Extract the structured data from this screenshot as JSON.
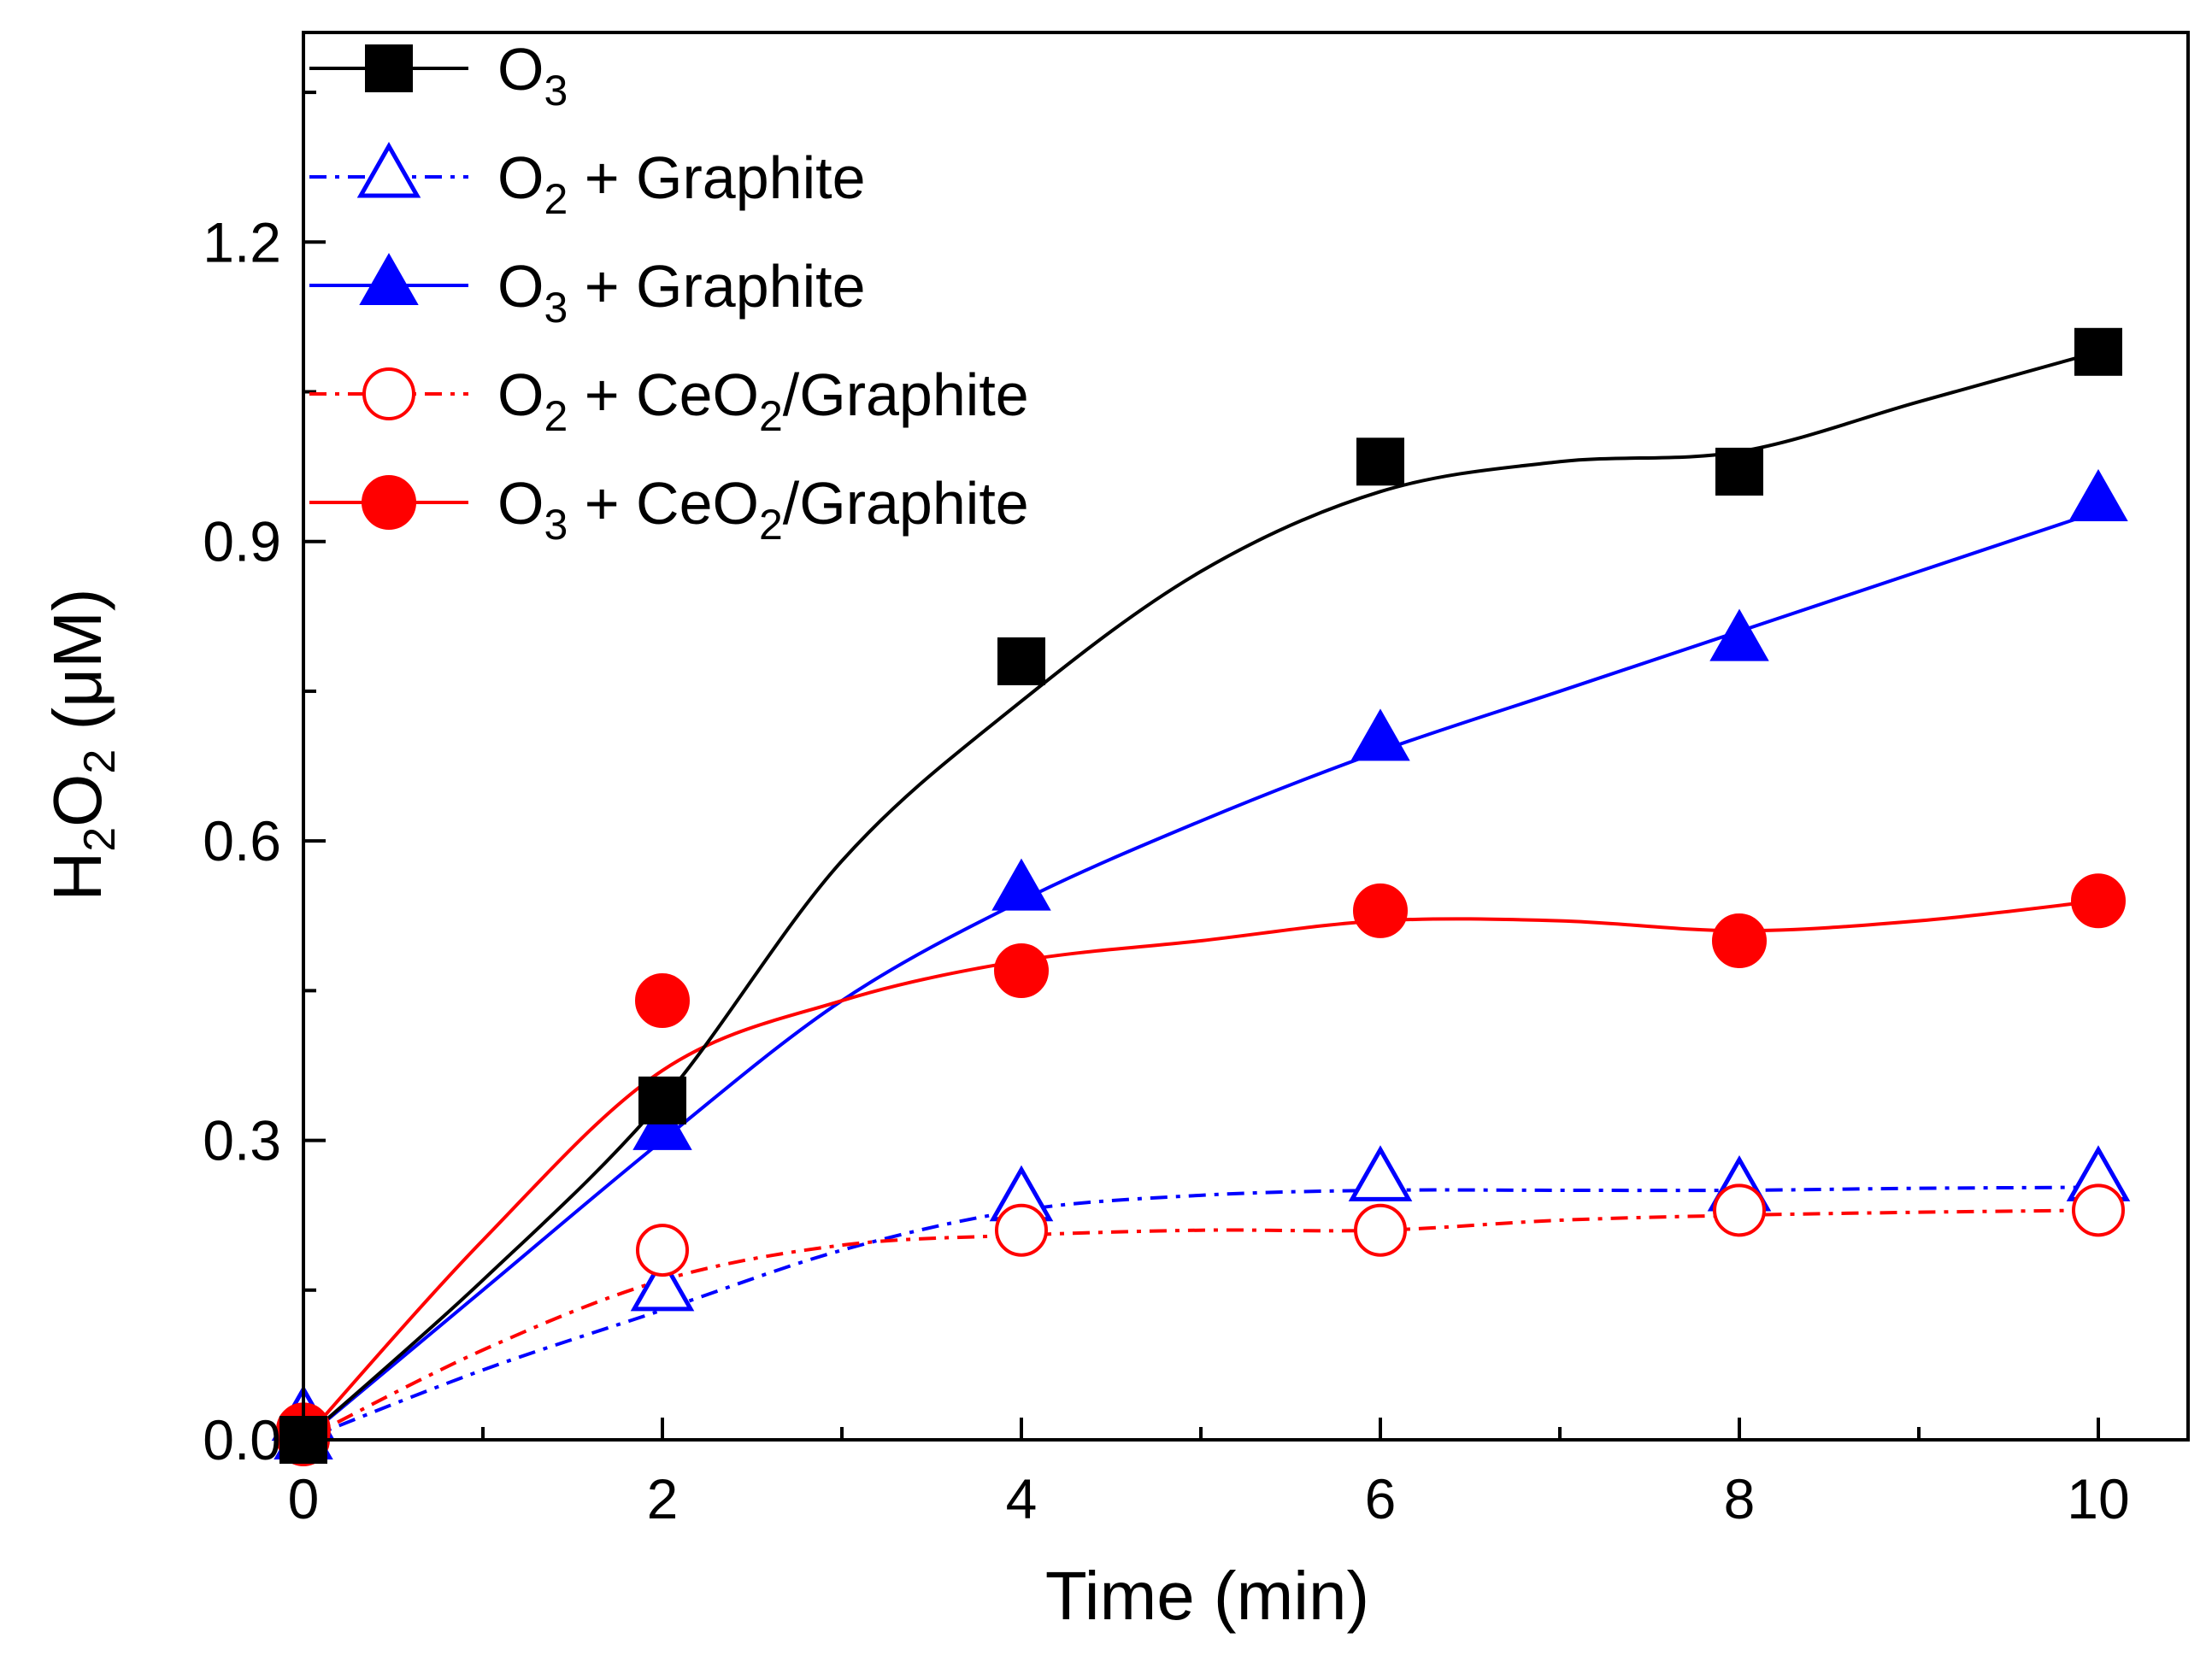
{
  "chart_data": {
    "type": "line",
    "xlabel": "Time (min)",
    "ylabel": "H₂O₂ (μM)",
    "xlim": [
      0,
      10.5
    ],
    "ylim": [
      0,
      1.41
    ],
    "x_ticks": [
      0,
      2,
      4,
      6,
      8,
      10
    ],
    "x_tick_labels": [
      "0",
      "2",
      "4",
      "6",
      "8",
      "10"
    ],
    "y_ticks": [
      0.0,
      0.3,
      0.6,
      0.9,
      1.2
    ],
    "y_tick_labels": [
      "0.0",
      "0.3",
      "0.6",
      "0.9",
      "1.2"
    ],
    "grid": false,
    "legend_position": "top-left",
    "series": [
      {
        "name": "O3",
        "color": "#000000",
        "marker": "square-filled",
        "line_style": "solid",
        "x": [
          0,
          2,
          4,
          6,
          8,
          10
        ],
        "y": [
          0.0,
          0.34,
          0.78,
          0.98,
          0.97,
          1.09
        ],
        "fit": [
          [
            0,
            0.0
          ],
          [
            1,
            0.16
          ],
          [
            2,
            0.34
          ],
          [
            3,
            0.58
          ],
          [
            4,
            0.74
          ],
          [
            5,
            0.87
          ],
          [
            6,
            0.95
          ],
          [
            7,
            0.98
          ],
          [
            8,
            0.99
          ],
          [
            9,
            1.04
          ],
          [
            10,
            1.09
          ]
        ]
      },
      {
        "name": "O2 + Graphite",
        "color": "#0000ff",
        "marker": "triangle-open",
        "line_style": "dashdot",
        "x": [
          0,
          2,
          4,
          6,
          8,
          10
        ],
        "y": [
          0.02,
          0.15,
          0.24,
          0.26,
          0.25,
          0.26
        ],
        "fit": [
          [
            0,
            0.0
          ],
          [
            1,
            0.07
          ],
          [
            2,
            0.13
          ],
          [
            3,
            0.19
          ],
          [
            4,
            0.23
          ],
          [
            5,
            0.245
          ],
          [
            6,
            0.25
          ],
          [
            7,
            0.25
          ],
          [
            8,
            0.25
          ],
          [
            9,
            0.252
          ],
          [
            10,
            0.253
          ]
        ]
      },
      {
        "name": "O3 + Graphite",
        "color": "#0000ff",
        "marker": "triangle-filled",
        "line_style": "solid",
        "x": [
          0,
          2,
          4,
          6,
          8,
          10
        ],
        "y": [
          0.0,
          0.31,
          0.55,
          0.7,
          0.8,
          0.94
        ],
        "fit": [
          [
            0,
            0.0
          ],
          [
            1,
            0.15
          ],
          [
            2,
            0.3
          ],
          [
            3,
            0.44
          ],
          [
            4,
            0.54
          ],
          [
            5,
            0.62
          ],
          [
            6,
            0.69
          ],
          [
            7,
            0.75
          ],
          [
            8,
            0.81
          ],
          [
            9,
            0.87
          ],
          [
            10,
            0.93
          ]
        ]
      },
      {
        "name": "O2 + CeO2/Graphite",
        "color": "#ff0000",
        "marker": "circle-open",
        "line_style": "dashdot",
        "x": [
          0,
          2,
          4,
          6,
          8,
          10
        ],
        "y": [
          0.0,
          0.19,
          0.21,
          0.21,
          0.23,
          0.23
        ],
        "fit": [
          [
            0,
            0.0
          ],
          [
            1,
            0.09
          ],
          [
            2,
            0.16
          ],
          [
            3,
            0.195
          ],
          [
            4,
            0.205
          ],
          [
            5,
            0.21
          ],
          [
            6,
            0.21
          ],
          [
            7,
            0.22
          ],
          [
            8,
            0.225
          ],
          [
            9,
            0.228
          ],
          [
            10,
            0.23
          ]
        ]
      },
      {
        "name": "O3 + CeO2/Graphite",
        "color": "#ff0000",
        "marker": "circle-filled",
        "line_style": "solid",
        "x": [
          0,
          2,
          4,
          6,
          8,
          10
        ],
        "y": [
          0.01,
          0.44,
          0.47,
          0.53,
          0.5,
          0.54
        ],
        "fit": [
          [
            0,
            0.0
          ],
          [
            1,
            0.2
          ],
          [
            2,
            0.37
          ],
          [
            3,
            0.44
          ],
          [
            4,
            0.48
          ],
          [
            5,
            0.5
          ],
          [
            6,
            0.52
          ],
          [
            7,
            0.52
          ],
          [
            8,
            0.51
          ],
          [
            9,
            0.52
          ],
          [
            10,
            0.54
          ]
        ]
      }
    ],
    "legend": [
      {
        "main": "O",
        "sub": "3",
        "rest": ""
      },
      {
        "main": "O",
        "sub": "2",
        "rest": " + Graphite"
      },
      {
        "main": "O",
        "sub": "3",
        "rest": " + Graphite"
      },
      {
        "main": "O",
        "sub": "2",
        "rest": " + CeO",
        "sub2": "2",
        "rest2": "/Graphite"
      },
      {
        "main": "O",
        "sub": "3",
        "rest": " + CeO",
        "sub2": "2",
        "rest2": "/Graphite"
      }
    ]
  }
}
